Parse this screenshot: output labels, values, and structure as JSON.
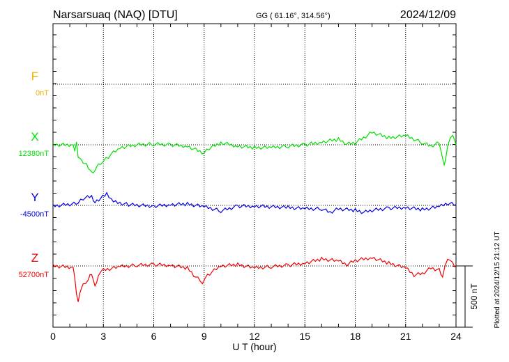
{
  "header": {
    "station": "Narsarsuaq (NAQ)  [DTU]",
    "coords": "GG ( 61.16°, 314.56°)",
    "date": "2024/12/09"
  },
  "footer": {
    "plotted": "Plotted at 2024/12/15 21:12 UT",
    "scale_label": "500 nT"
  },
  "chart_data": {
    "type": "line",
    "title": "Narsarsuaq (NAQ)  [DTU]",
    "xlabel": "U T (hour)",
    "xlim": [
      0,
      24
    ],
    "xticks": [
      "0",
      "3",
      "6",
      "9",
      "12",
      "15",
      "18",
      "21",
      "24"
    ],
    "scale_nT": 500,
    "series": [
      {
        "name": "F",
        "baseline_label": "0nT",
        "color": "#f0b000",
        "points": []
      },
      {
        "name": "X",
        "baseline_label": "12380nT",
        "color": "#00e000",
        "points": [
          [
            0,
            0
          ],
          [
            1.2,
            0
          ],
          [
            1.3,
            -40
          ],
          [
            1.4,
            17
          ],
          [
            1.5,
            -97
          ],
          [
            1.7,
            -136
          ],
          [
            1.9,
            -153
          ],
          [
            2.1,
            -182
          ],
          [
            2.3,
            -227
          ],
          [
            2.5,
            -204
          ],
          [
            2.7,
            -170
          ],
          [
            3,
            -136
          ],
          [
            3.3,
            -97
          ],
          [
            3.6,
            -57
          ],
          [
            4,
            -23
          ],
          [
            4.5,
            -11
          ],
          [
            5,
            0
          ],
          [
            6,
            6
          ],
          [
            7,
            0
          ],
          [
            8,
            -11
          ],
          [
            8.5,
            -40
          ],
          [
            9,
            -68
          ],
          [
            9.3,
            -28
          ],
          [
            10,
            17
          ],
          [
            11,
            -11
          ],
          [
            12,
            -23
          ],
          [
            13,
            -23
          ],
          [
            14,
            -11
          ],
          [
            15,
            0
          ],
          [
            16,
            23
          ],
          [
            17,
            45
          ],
          [
            17.5,
            6
          ],
          [
            18,
            17
          ],
          [
            18.5,
            57
          ],
          [
            19,
            102
          ],
          [
            20,
            57
          ],
          [
            21,
            74
          ],
          [
            22,
            17
          ],
          [
            22.5,
            -11
          ],
          [
            23,
            17
          ],
          [
            23.3,
            -182
          ],
          [
            23.5,
            -11
          ],
          [
            23.8,
            91
          ],
          [
            24,
            0
          ]
        ]
      },
      {
        "name": "Y",
        "baseline_label": "-4500nT",
        "color": "#0000e0",
        "points": [
          [
            0,
            -6
          ],
          [
            1.5,
            17
          ],
          [
            1.8,
            57
          ],
          [
            2.3,
            74
          ],
          [
            2.5,
            28
          ],
          [
            3.2,
            91
          ],
          [
            3.6,
            28
          ],
          [
            4.5,
            6
          ],
          [
            6,
            -6
          ],
          [
            7,
            6
          ],
          [
            8,
            11
          ],
          [
            9,
            -11
          ],
          [
            10,
            -45
          ],
          [
            11,
            -6
          ],
          [
            12,
            -6
          ],
          [
            14,
            -17
          ],
          [
            15,
            -28
          ],
          [
            16,
            -28
          ],
          [
            16.5,
            -57
          ],
          [
            17,
            -28
          ],
          [
            18,
            -40
          ],
          [
            18.5,
            -57
          ],
          [
            19,
            -40
          ],
          [
            20,
            -23
          ],
          [
            21,
            -17
          ],
          [
            22,
            -34
          ],
          [
            23,
            -11
          ],
          [
            23.5,
            17
          ],
          [
            24,
            6
          ]
        ]
      },
      {
        "name": "Z",
        "baseline_label": "52700nT",
        "color": "#f00000",
        "points": [
          [
            0,
            0
          ],
          [
            1.2,
            -11
          ],
          [
            1.4,
            -216
          ],
          [
            1.5,
            -300
          ],
          [
            1.6,
            -216
          ],
          [
            1.8,
            -159
          ],
          [
            2.1,
            -114
          ],
          [
            2.3,
            -57
          ],
          [
            2.5,
            -170
          ],
          [
            2.7,
            -74
          ],
          [
            3,
            -34
          ],
          [
            4,
            -6
          ],
          [
            5,
            6
          ],
          [
            6,
            11
          ],
          [
            7,
            6
          ],
          [
            8,
            -17
          ],
          [
            8.5,
            -91
          ],
          [
            8.9,
            -131
          ],
          [
            9.2,
            -74
          ],
          [
            10,
            0
          ],
          [
            11,
            11
          ],
          [
            12,
            -17
          ],
          [
            13,
            -6
          ],
          [
            14,
            6
          ],
          [
            15,
            23
          ],
          [
            16,
            57
          ],
          [
            17,
            40
          ],
          [
            17.5,
            11
          ],
          [
            18,
            45
          ],
          [
            19,
            68
          ],
          [
            20,
            23
          ],
          [
            21,
            -17
          ],
          [
            21.5,
            -74
          ],
          [
            22,
            -62
          ],
          [
            22.5,
            -17
          ],
          [
            23,
            -34
          ],
          [
            23.2,
            -91
          ],
          [
            23.5,
            68
          ],
          [
            23.8,
            23
          ],
          [
            24,
            -6
          ]
        ]
      }
    ]
  }
}
